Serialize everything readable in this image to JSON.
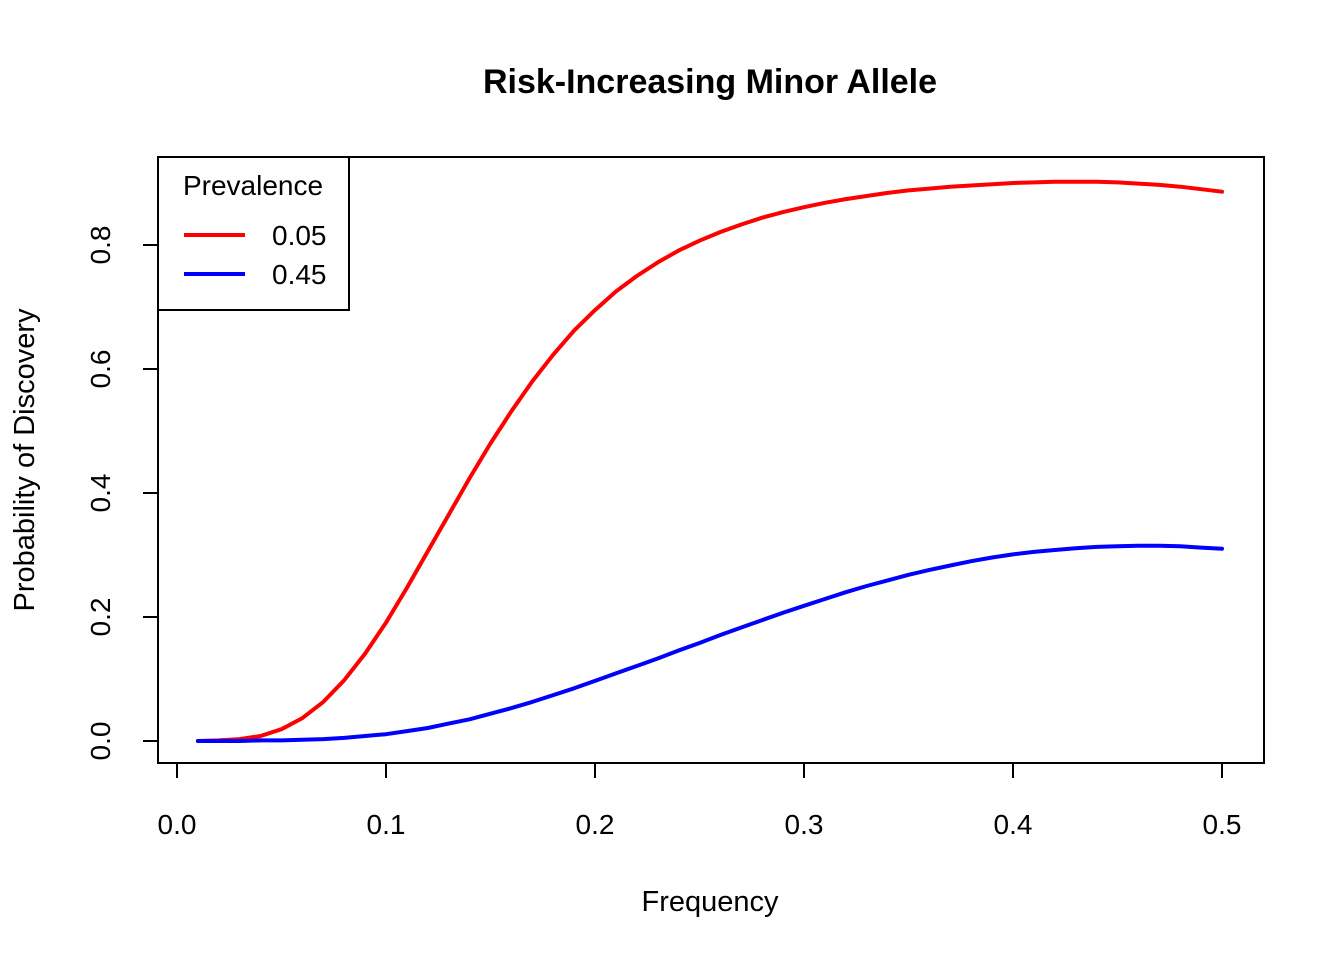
{
  "chart_data": {
    "type": "line",
    "title": "Risk-Increasing Minor Allele",
    "xlabel": "Frequency",
    "ylabel": "Probability of Discovery",
    "xlim": [
      0.0,
      0.5
    ],
    "ylim": [
      0.0,
      0.9
    ],
    "xticks": [
      0.0,
      0.1,
      0.2,
      0.3,
      0.4,
      0.5
    ],
    "xtick_labels": [
      "0.0",
      "0.1",
      "0.2",
      "0.3",
      "0.4",
      "0.5"
    ],
    "yticks": [
      0.0,
      0.2,
      0.4,
      0.6,
      0.8
    ],
    "ytick_labels": [
      "0.0",
      "0.2",
      "0.4",
      "0.6",
      "0.8"
    ],
    "grid": false,
    "legend": {
      "title": "Prevalence",
      "position": "top-left"
    },
    "series": [
      {
        "name": "0.05",
        "color": "#ff0000",
        "x": [
          0.01,
          0.02,
          0.03,
          0.04,
          0.05,
          0.06,
          0.07,
          0.08,
          0.09,
          0.1,
          0.11,
          0.12,
          0.13,
          0.14,
          0.15,
          0.16,
          0.17,
          0.18,
          0.19,
          0.2,
          0.21,
          0.22,
          0.23,
          0.24,
          0.25,
          0.26,
          0.27,
          0.28,
          0.29,
          0.3,
          0.31,
          0.32,
          0.33,
          0.34,
          0.35,
          0.36,
          0.37,
          0.38,
          0.39,
          0.4,
          0.41,
          0.42,
          0.43,
          0.44,
          0.45,
          0.46,
          0.47,
          0.48,
          0.49,
          0.5
        ],
        "y": [
          0.0,
          0.001,
          0.003,
          0.008,
          0.019,
          0.037,
          0.063,
          0.098,
          0.141,
          0.191,
          0.247,
          0.306,
          0.365,
          0.424,
          0.48,
          0.532,
          0.58,
          0.623,
          0.662,
          0.695,
          0.725,
          0.75,
          0.772,
          0.791,
          0.807,
          0.821,
          0.833,
          0.844,
          0.853,
          0.861,
          0.868,
          0.874,
          0.879,
          0.884,
          0.888,
          0.891,
          0.894,
          0.896,
          0.898,
          0.9,
          0.901,
          0.902,
          0.902,
          0.902,
          0.901,
          0.899,
          0.897,
          0.894,
          0.89,
          0.886
        ]
      },
      {
        "name": "0.45",
        "color": "#0000ff",
        "x": [
          0.01,
          0.02,
          0.03,
          0.04,
          0.05,
          0.06,
          0.07,
          0.08,
          0.09,
          0.1,
          0.11,
          0.12,
          0.13,
          0.14,
          0.15,
          0.16,
          0.17,
          0.18,
          0.19,
          0.2,
          0.21,
          0.22,
          0.23,
          0.24,
          0.25,
          0.26,
          0.27,
          0.28,
          0.29,
          0.3,
          0.31,
          0.32,
          0.33,
          0.34,
          0.35,
          0.36,
          0.37,
          0.38,
          0.39,
          0.4,
          0.41,
          0.42,
          0.43,
          0.44,
          0.45,
          0.46,
          0.47,
          0.48,
          0.49,
          0.5
        ],
        "y": [
          0.0,
          0.0,
          0.0,
          0.001,
          0.001,
          0.002,
          0.003,
          0.005,
          0.008,
          0.011,
          0.016,
          0.021,
          0.028,
          0.035,
          0.044,
          0.053,
          0.063,
          0.074,
          0.085,
          0.097,
          0.109,
          0.121,
          0.133,
          0.146,
          0.158,
          0.171,
          0.183,
          0.195,
          0.207,
          0.218,
          0.229,
          0.24,
          0.25,
          0.259,
          0.268,
          0.276,
          0.283,
          0.29,
          0.296,
          0.301,
          0.305,
          0.308,
          0.311,
          0.313,
          0.314,
          0.315,
          0.315,
          0.314,
          0.312,
          0.31
        ]
      }
    ]
  }
}
